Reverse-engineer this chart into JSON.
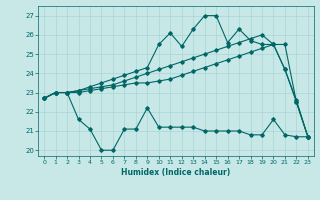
{
  "xlabel": "Humidex (Indice chaleur)",
  "xlim": [
    -0.5,
    23.5
  ],
  "ylim": [
    19.7,
    27.5
  ],
  "yticks": [
    20,
    21,
    22,
    23,
    24,
    25,
    26,
    27
  ],
  "xticks": [
    0,
    1,
    2,
    3,
    4,
    5,
    6,
    7,
    8,
    9,
    10,
    11,
    12,
    13,
    14,
    15,
    16,
    17,
    18,
    19,
    20,
    21,
    22,
    23
  ],
  "bg_color": "#c8e8e8",
  "line_color": "#006666",
  "grid_color": "#aad4d4",
  "line1_x": [
    0,
    1,
    2,
    3,
    4,
    5,
    6,
    7,
    8,
    9,
    10,
    11,
    12,
    13,
    14,
    15,
    16,
    17,
    18,
    19,
    20,
    21,
    22,
    23
  ],
  "line1_y": [
    22.7,
    23.0,
    23.0,
    21.6,
    21.1,
    20.0,
    20.0,
    21.1,
    21.1,
    22.2,
    21.2,
    21.2,
    21.2,
    21.2,
    21.0,
    21.0,
    21.0,
    21.0,
    20.8,
    20.8,
    21.6,
    20.8,
    20.7,
    20.7
  ],
  "line2_x": [
    0,
    1,
    2,
    3,
    4,
    5,
    6,
    7,
    8,
    9,
    10,
    11,
    12,
    13,
    14,
    15,
    16,
    17,
    18,
    19,
    20,
    21,
    22,
    23
  ],
  "line2_y": [
    22.7,
    23.0,
    23.0,
    23.0,
    23.1,
    23.2,
    23.3,
    23.4,
    23.5,
    23.5,
    23.6,
    23.7,
    23.9,
    24.1,
    24.3,
    24.5,
    24.7,
    24.9,
    25.1,
    25.3,
    25.5,
    24.2,
    22.6,
    20.7
  ],
  "line3_x": [
    0,
    1,
    2,
    3,
    4,
    5,
    6,
    7,
    8,
    9,
    10,
    11,
    12,
    13,
    14,
    15,
    16,
    17,
    18,
    19,
    20,
    21,
    22,
    23
  ],
  "line3_y": [
    22.7,
    23.0,
    23.0,
    23.1,
    23.2,
    23.3,
    23.4,
    23.6,
    23.8,
    24.0,
    24.2,
    24.4,
    24.6,
    24.8,
    25.0,
    25.2,
    25.4,
    25.6,
    25.8,
    26.0,
    25.5,
    25.5,
    22.5,
    20.7
  ],
  "line4_x": [
    0,
    1,
    2,
    3,
    4,
    5,
    6,
    7,
    8,
    9,
    10,
    11,
    12,
    13,
    14,
    15,
    16,
    17,
    18,
    19,
    20,
    21,
    22,
    23
  ],
  "line4_y": [
    22.7,
    23.0,
    23.0,
    23.1,
    23.3,
    23.5,
    23.7,
    23.9,
    24.1,
    24.3,
    25.5,
    26.1,
    25.4,
    26.3,
    27.0,
    27.0,
    25.6,
    26.3,
    25.7,
    25.5,
    25.5,
    24.2,
    22.5,
    20.7
  ]
}
